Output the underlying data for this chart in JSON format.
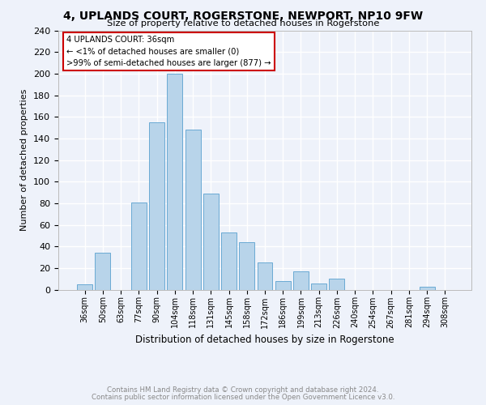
{
  "title": "4, UPLANDS COURT, ROGERSTONE, NEWPORT, NP10 9FW",
  "subtitle": "Size of property relative to detached houses in Rogerstone",
  "xlabel": "Distribution of detached houses by size in Rogerstone",
  "ylabel": "Number of detached properties",
  "bar_labels": [
    "36sqm",
    "50sqm",
    "63sqm",
    "77sqm",
    "90sqm",
    "104sqm",
    "118sqm",
    "131sqm",
    "145sqm",
    "158sqm",
    "172sqm",
    "186sqm",
    "199sqm",
    "213sqm",
    "226sqm",
    "240sqm",
    "254sqm",
    "267sqm",
    "281sqm",
    "294sqm",
    "308sqm"
  ],
  "bar_values": [
    5,
    34,
    0,
    81,
    155,
    200,
    148,
    89,
    53,
    44,
    25,
    8,
    17,
    6,
    10,
    0,
    0,
    0,
    0,
    3,
    0
  ],
  "bar_color": "#b8d4ea",
  "bar_edge_color": "#6aaad4",
  "ylim": [
    0,
    240
  ],
  "yticks": [
    0,
    20,
    40,
    60,
    80,
    100,
    120,
    140,
    160,
    180,
    200,
    220,
    240
  ],
  "annotation_title": "4 UPLANDS COURT: 36sqm",
  "annotation_line1": "← <1% of detached houses are smaller (0)",
  "annotation_line2": ">99% of semi-detached houses are larger (877) →",
  "annotation_box_color": "#ffffff",
  "annotation_box_edge": "#cc0000",
  "footer_line1": "Contains HM Land Registry data © Crown copyright and database right 2024.",
  "footer_line2": "Contains public sector information licensed under the Open Government Licence v3.0.",
  "background_color": "#eef2fa",
  "grid_color": "#ffffff",
  "footer_color": "#888888"
}
